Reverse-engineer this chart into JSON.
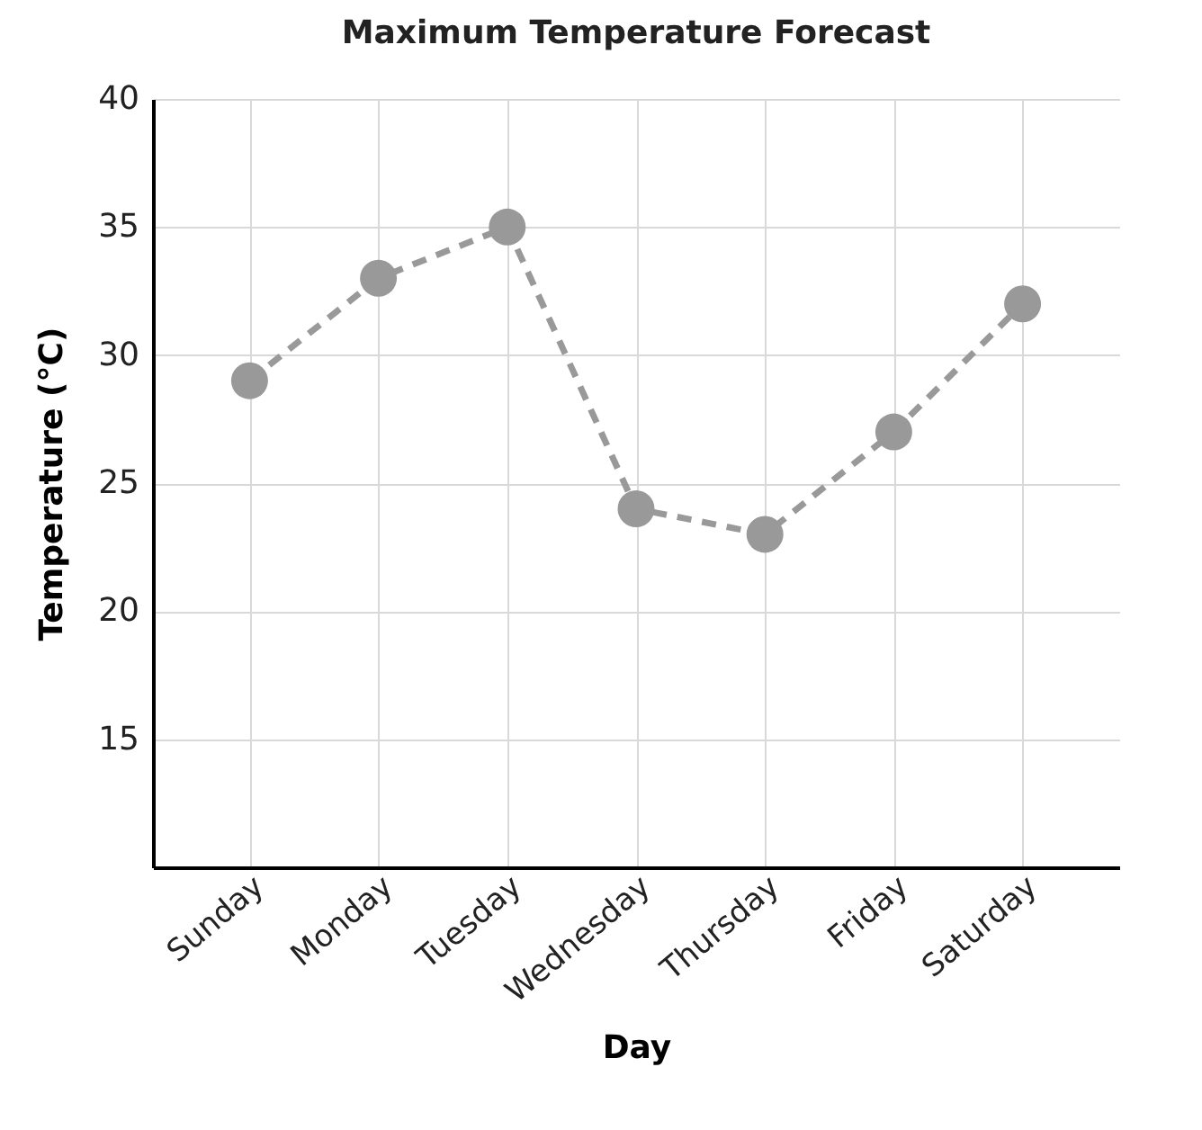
{
  "chart_data": {
    "type": "line",
    "title": "Maximum Temperature Forecast",
    "xlabel": "Day",
    "ylabel": "Temperature (°C)",
    "categories": [
      "Sunday",
      "Monday",
      "Tuesday",
      "Wednesday",
      "Thursday",
      "Friday",
      "Saturday"
    ],
    "series": [
      {
        "color": "#999999",
        "values": [
          29,
          33,
          35,
          24,
          23,
          27,
          32
        ]
      }
    ],
    "ylim": [
      10,
      40
    ],
    "yticks": [
      15,
      20,
      25,
      30,
      35,
      40
    ],
    "grid": true,
    "marker": "circle",
    "line_style": "dashed"
  }
}
